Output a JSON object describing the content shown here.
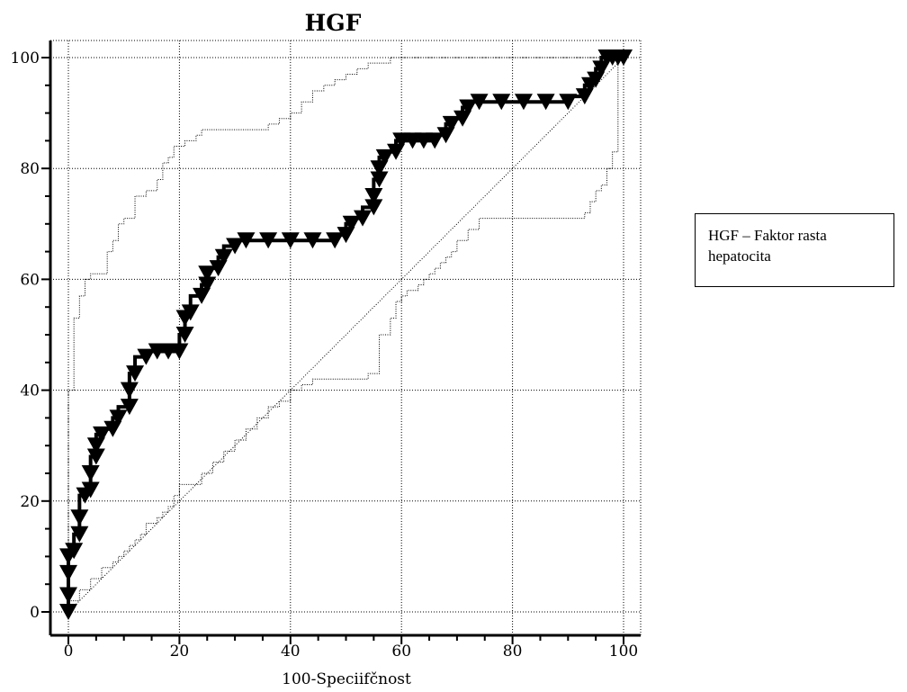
{
  "chart_data": {
    "type": "line",
    "title": "HGF",
    "xlabel": "100-Speciifčnost",
    "ylabel": "",
    "xlim": [
      -3,
      103
    ],
    "ylim": [
      -3,
      103
    ],
    "x_ticks": [
      "0",
      "20",
      "40",
      "60",
      "80",
      "100"
    ],
    "y_ticks": [
      "0",
      "20",
      "40",
      "60",
      "80",
      "100"
    ],
    "grid": true,
    "legend_text": "HGF – Faktor rasta hepatocita",
    "legend_position": "right",
    "series": [
      {
        "role": "roc",
        "x": [
          0,
          0,
          0,
          0,
          1,
          2,
          2,
          3,
          4,
          4,
          5,
          5,
          6,
          8,
          9,
          11,
          11,
          12,
          14,
          16,
          18,
          20,
          21,
          21,
          22,
          24,
          25,
          25,
          27,
          28,
          30,
          32,
          36,
          40,
          44,
          48,
          50,
          51,
          53,
          55,
          55,
          56,
          56,
          57,
          59,
          60,
          62,
          64,
          66,
          68,
          69,
          71,
          72,
          74,
          78,
          82,
          86,
          90,
          93,
          94,
          95,
          96,
          97,
          98,
          99,
          100
        ],
        "y": [
          0,
          3,
          7,
          10,
          11,
          14,
          17,
          21,
          22,
          25,
          28,
          30,
          32,
          33,
          35,
          37,
          40,
          43,
          46,
          47,
          47,
          47,
          50,
          53,
          54,
          57,
          59,
          61,
          62,
          64,
          66,
          67,
          67,
          67,
          67,
          67,
          68,
          70,
          71,
          73,
          75,
          78,
          80,
          82,
          83,
          85,
          85,
          85,
          85,
          86,
          88,
          89,
          91,
          92,
          92,
          92,
          92,
          92,
          93,
          95,
          96,
          98,
          100,
          100,
          100,
          100
        ]
      },
      {
        "role": "upper-ci",
        "x": [
          0,
          0,
          1,
          1,
          2,
          3,
          4,
          4,
          5,
          6,
          7,
          8,
          9,
          10,
          12,
          14,
          16,
          17,
          18,
          19,
          21,
          22,
          23,
          24,
          25,
          26,
          27,
          28,
          29,
          30,
          32,
          34,
          36,
          38,
          40,
          42,
          44,
          46,
          48,
          50,
          52,
          54,
          56,
          58,
          60,
          62,
          64,
          66,
          68,
          70,
          72,
          74,
          76,
          78,
          80,
          82,
          84,
          86,
          88,
          90,
          92,
          94,
          96,
          98,
          100
        ],
        "y": [
          0,
          33,
          40,
          46,
          53,
          57,
          60,
          61,
          61,
          61,
          61,
          65,
          67,
          70,
          71,
          75,
          76,
          78,
          81,
          82,
          84,
          85,
          85,
          86,
          87,
          87,
          87,
          87,
          87,
          87,
          87,
          87,
          87,
          88,
          89,
          90,
          92,
          94,
          95,
          96,
          97,
          98,
          99,
          99,
          100,
          100,
          100,
          100,
          100,
          100,
          100,
          100,
          100,
          100,
          100,
          100,
          100,
          100,
          100,
          100,
          100,
          100,
          100,
          100,
          100
        ]
      },
      {
        "role": "lower-ci",
        "x": [
          0,
          2,
          4,
          6,
          8,
          9,
          10,
          11,
          12,
          13,
          14,
          16,
          17,
          18,
          19,
          20,
          21,
          22,
          23,
          24,
          26,
          28,
          30,
          32,
          34,
          36,
          38,
          40,
          42,
          44,
          46,
          48,
          50,
          52,
          54,
          56,
          56,
          58,
          59,
          60,
          61,
          62,
          63,
          64,
          65,
          66,
          67,
          68,
          69,
          70,
          72,
          74,
          76,
          78,
          80,
          82,
          84,
          86,
          88,
          90,
          92,
          93,
          94,
          95,
          96,
          97,
          98,
          99,
          100
        ],
        "y": [
          0,
          2,
          4,
          6,
          8,
          9,
          10,
          11,
          12,
          13,
          14,
          16,
          17,
          18,
          19,
          21,
          23,
          23,
          23,
          23,
          25,
          27,
          29,
          31,
          33,
          35,
          37,
          38,
          40,
          41,
          42,
          42,
          42,
          42,
          42,
          43,
          46,
          50,
          53,
          56,
          57,
          58,
          58,
          59,
          60,
          61,
          62,
          63,
          64,
          65,
          67,
          69,
          71,
          71,
          71,
          71,
          71,
          71,
          71,
          71,
          71,
          71,
          72,
          74,
          76,
          77,
          80,
          83,
          100
        ]
      },
      {
        "role": "reference-diagonal",
        "x": [
          0,
          100
        ],
        "y": [
          0,
          100
        ]
      }
    ]
  }
}
